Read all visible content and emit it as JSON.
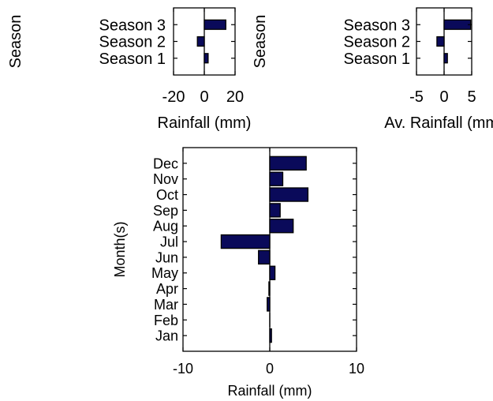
{
  "colors": {
    "bar_fill": "#0a0a5a",
    "bar_stroke": "#000000",
    "axis": "#000000",
    "background": "#ffffff"
  },
  "chart_data": [
    {
      "type": "bar",
      "orientation": "horizontal",
      "categories": [
        "Season 1",
        "Season 2",
        "Season 3"
      ],
      "values": [
        2.5,
        -4.5,
        14
      ],
      "xlabel": "Rainfall (mm)",
      "ylabel": "Season",
      "xlim": [
        -20,
        20
      ],
      "xticks": [
        "-20",
        "0",
        "20"
      ],
      "grid": false
    },
    {
      "type": "bar",
      "orientation": "horizontal",
      "categories": [
        "Season 1",
        "Season 2",
        "Season 3"
      ],
      "values": [
        0.6,
        -1.3,
        4.8
      ],
      "xlabel": "Av. Rainfall (mm)",
      "ylabel": "Season",
      "xlim": [
        -5,
        5
      ],
      "xticks": [
        "-5",
        "0",
        "5"
      ],
      "grid": false
    },
    {
      "type": "bar",
      "orientation": "horizontal",
      "categories": [
        "Jan",
        "Feb",
        "Mar",
        "Apr",
        "May",
        "Jun",
        "Jul",
        "Aug",
        "Sep",
        "Oct",
        "Nov",
        "Dec"
      ],
      "values": [
        0.2,
        0.0,
        -0.3,
        -0.1,
        0.6,
        -1.3,
        -5.6,
        2.7,
        1.2,
        4.4,
        1.5,
        4.2
      ],
      "xlabel": "Rainfall (mm)",
      "ylabel": "Month(s)",
      "xlim": [
        -10,
        10
      ],
      "xticks": [
        "-10",
        "0",
        "10"
      ],
      "grid": false
    }
  ]
}
